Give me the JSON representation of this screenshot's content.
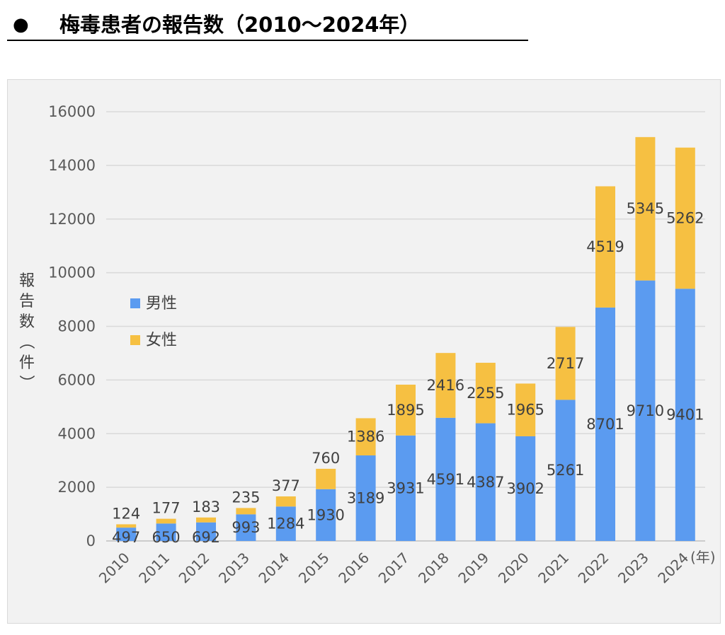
{
  "header": {
    "bullet": "●",
    "title": "梅毒患者の報告数（2010〜2024年）"
  },
  "chart_data": {
    "type": "bar",
    "stacked": true,
    "title": "梅毒患者の報告数（2010〜2024年）",
    "categories": [
      "2010",
      "2011",
      "2012",
      "2013",
      "2014",
      "2015",
      "2016",
      "2017",
      "2018",
      "2019",
      "2020",
      "2021",
      "2022",
      "2023",
      "2024"
    ],
    "series": [
      {
        "name": "男性",
        "color": "#5b9bf0",
        "values": [
          497,
          650,
          692,
          993,
          1284,
          1930,
          3189,
          3931,
          4591,
          4387,
          3902,
          5261,
          8701,
          9710,
          9401
        ]
      },
      {
        "name": "女性",
        "color": "#f6c042",
        "values": [
          124,
          177,
          183,
          235,
          377,
          760,
          1386,
          1895,
          2416,
          2255,
          1965,
          2717,
          4519,
          5345,
          5262
        ]
      }
    ],
    "ylabel": "報告数（件）",
    "x_unit": "(年)",
    "ylim": [
      0,
      16000
    ],
    "yticks": [
      0,
      2000,
      4000,
      6000,
      8000,
      10000,
      12000,
      14000,
      16000
    ],
    "grid": true,
    "legend_position": "left-middle"
  }
}
